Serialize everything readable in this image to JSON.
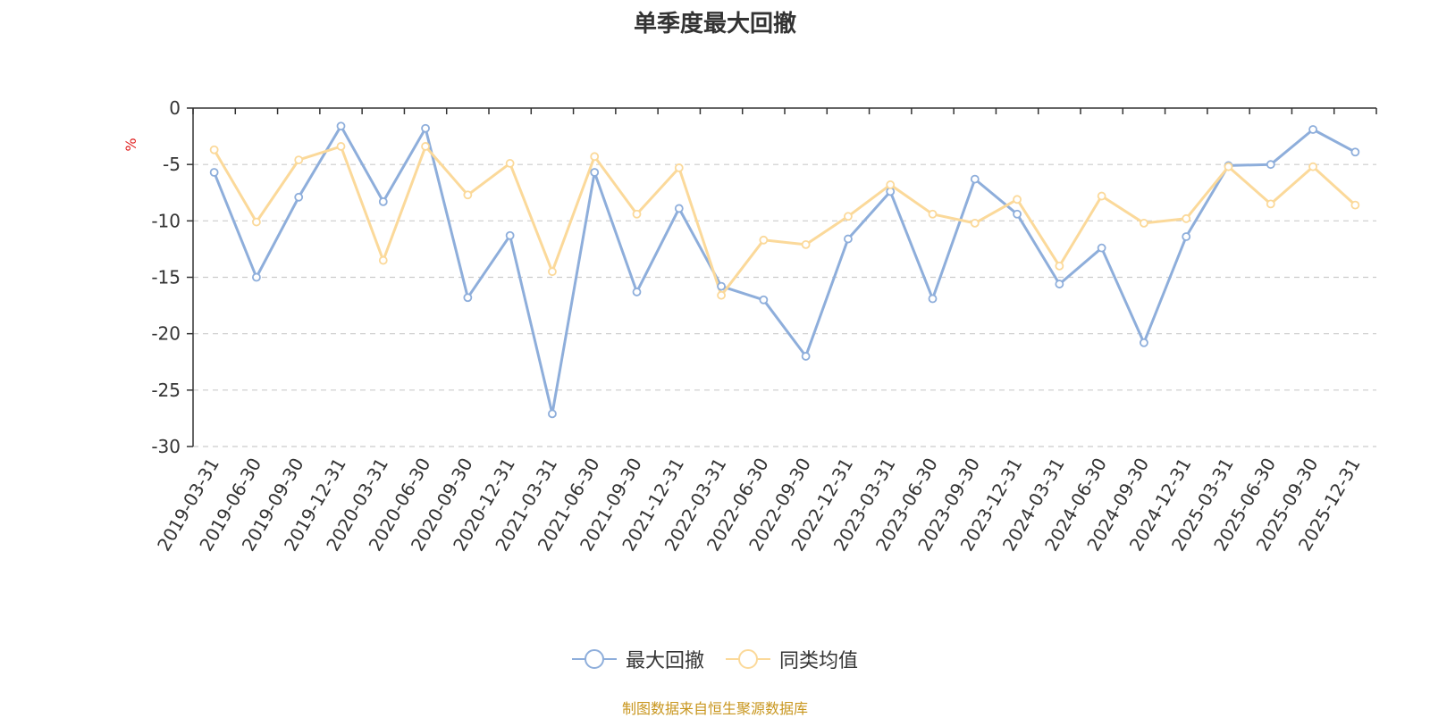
{
  "chart_data": {
    "type": "line",
    "title": "单季度最大回撤",
    "ylabel": "%",
    "xlabel": "",
    "ylim": [
      -30,
      0
    ],
    "yticks": [
      0,
      -5,
      -10,
      -15,
      -20,
      -25,
      -30
    ],
    "grid": true,
    "legend_position": "bottom-center",
    "categories": [
      "2019-03-31",
      "2019-06-30",
      "2019-09-30",
      "2019-12-31",
      "2020-03-31",
      "2020-06-30",
      "2020-09-30",
      "2020-12-31",
      "2021-03-31",
      "2021-06-30",
      "2021-09-30",
      "2021-12-31",
      "2022-03-31",
      "2022-06-30",
      "2022-09-30",
      "2022-12-31",
      "2023-03-31",
      "2023-06-30",
      "2023-09-30",
      "2023-12-31",
      "2024-03-31",
      "2024-06-30",
      "2024-09-30",
      "2024-12-31",
      "2025-03-31",
      "2025-06-30",
      "2025-09-30",
      "2025-12-31"
    ],
    "series": [
      {
        "name": "最大回撤",
        "color": "#8eaedb",
        "values": [
          -5.7,
          -15.0,
          -7.9,
          -1.6,
          -8.3,
          -1.8,
          -16.8,
          -11.3,
          -27.1,
          -5.7,
          -16.3,
          -8.9,
          -15.8,
          -17.0,
          -22.0,
          -11.6,
          -7.4,
          -16.9,
          -6.3,
          -9.4,
          -15.6,
          -12.4,
          -20.8,
          -11.4,
          -5.1,
          -5.0,
          -1.9,
          -3.9
        ]
      },
      {
        "name": "同类均值",
        "color": "#fbd99a",
        "values": [
          -3.7,
          -10.1,
          -4.6,
          -3.4,
          -13.5,
          -3.4,
          -7.7,
          -4.9,
          -14.5,
          -4.3,
          -9.4,
          -5.3,
          -16.6,
          -11.7,
          -12.1,
          -9.6,
          -6.8,
          -9.4,
          -10.2,
          -8.1,
          -14.0,
          -7.8,
          -10.2,
          -9.8,
          -5.2,
          -8.5,
          -5.2,
          -8.6
        ]
      }
    ]
  },
  "footer": {
    "source": "制图数据来自恒生聚源数据库"
  }
}
